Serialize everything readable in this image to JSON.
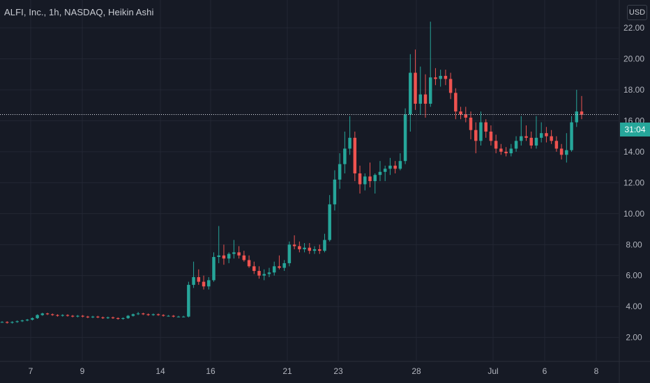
{
  "title": "ALFI, Inc., 1h, NASDAQ, Heikin Ashi",
  "currency": "USD",
  "countdown": "31:04",
  "colors": {
    "background": "#161a25",
    "grid": "#232734",
    "up": "#26a69a",
    "down": "#ef5350",
    "text": "#b2b5be",
    "crosshair": "#e0e3eb"
  },
  "chart_data": {
    "type": "candlestick",
    "title": "ALFI, Inc., 1h, NASDAQ, Heikin Ashi",
    "ylim": [
      0.5,
      23.8
    ],
    "y_ticks": [
      "2.00",
      "4.00",
      "6.00",
      "8.00",
      "10.00",
      "12.00",
      "14.00",
      "16.00",
      "18.00",
      "20.00",
      "22.00"
    ],
    "x_ticks": [
      "7",
      "9",
      "14",
      "16",
      "21",
      "23",
      "28",
      "Jul",
      "6",
      "8"
    ],
    "current_price": 16.4,
    "grid": true,
    "candles": [
      [
        3.0,
        3.05,
        2.95,
        3.0
      ],
      [
        3.0,
        3.05,
        2.9,
        2.95
      ],
      [
        2.95,
        3.05,
        2.9,
        3.0
      ],
      [
        3.0,
        3.1,
        2.95,
        3.05
      ],
      [
        3.05,
        3.15,
        3.0,
        3.1
      ],
      [
        3.1,
        3.2,
        3.05,
        3.15
      ],
      [
        3.15,
        3.3,
        3.1,
        3.25
      ],
      [
        3.25,
        3.5,
        3.2,
        3.45
      ],
      [
        3.45,
        3.6,
        3.4,
        3.55
      ],
      [
        3.55,
        3.6,
        3.45,
        3.5
      ],
      [
        3.5,
        3.55,
        3.4,
        3.45
      ],
      [
        3.45,
        3.5,
        3.35,
        3.4
      ],
      [
        3.4,
        3.5,
        3.35,
        3.45
      ],
      [
        3.45,
        3.5,
        3.35,
        3.4
      ],
      [
        3.4,
        3.45,
        3.3,
        3.35
      ],
      [
        3.35,
        3.45,
        3.3,
        3.4
      ],
      [
        3.4,
        3.45,
        3.3,
        3.35
      ],
      [
        3.35,
        3.4,
        3.25,
        3.3
      ],
      [
        3.3,
        3.4,
        3.25,
        3.35
      ],
      [
        3.35,
        3.4,
        3.25,
        3.3
      ],
      [
        3.3,
        3.35,
        3.2,
        3.25
      ],
      [
        3.25,
        3.35,
        3.2,
        3.3
      ],
      [
        3.3,
        3.35,
        3.2,
        3.25
      ],
      [
        3.25,
        3.3,
        3.15,
        3.2
      ],
      [
        3.2,
        3.3,
        3.15,
        3.25
      ],
      [
        3.25,
        3.45,
        3.2,
        3.4
      ],
      [
        3.4,
        3.55,
        3.35,
        3.5
      ],
      [
        3.5,
        3.65,
        3.45,
        3.55
      ],
      [
        3.55,
        3.6,
        3.45,
        3.5
      ],
      [
        3.5,
        3.55,
        3.4,
        3.45
      ],
      [
        3.45,
        3.55,
        3.4,
        3.5
      ],
      [
        3.5,
        3.55,
        3.4,
        3.45
      ],
      [
        3.45,
        3.5,
        3.35,
        3.4
      ],
      [
        3.4,
        3.45,
        3.35,
        3.4
      ],
      [
        3.4,
        3.45,
        3.3,
        3.35
      ],
      [
        3.35,
        3.4,
        3.3,
        3.35
      ],
      [
        3.35,
        3.4,
        3.3,
        3.35
      ],
      [
        3.35,
        5.6,
        3.3,
        5.4
      ],
      [
        5.4,
        6.9,
        5.2,
        5.9
      ],
      [
        5.9,
        6.4,
        5.4,
        5.6
      ],
      [
        5.6,
        6.0,
        5.1,
        5.3
      ],
      [
        5.3,
        5.9,
        5.1,
        5.7
      ],
      [
        5.7,
        7.5,
        5.6,
        7.2
      ],
      [
        7.2,
        9.2,
        6.8,
        7.3
      ],
      [
        7.3,
        8.0,
        6.7,
        7.1
      ],
      [
        7.1,
        7.5,
        6.8,
        7.4
      ],
      [
        7.4,
        8.3,
        7.1,
        7.5
      ],
      [
        7.5,
        7.9,
        7.1,
        7.3
      ],
      [
        7.3,
        7.6,
        6.9,
        7.0
      ],
      [
        7.0,
        7.3,
        6.5,
        6.6
      ],
      [
        6.6,
        6.9,
        6.1,
        6.3
      ],
      [
        6.3,
        6.6,
        5.8,
        6.0
      ],
      [
        6.0,
        6.4,
        5.7,
        6.1
      ],
      [
        6.1,
        6.5,
        5.9,
        6.2
      ],
      [
        6.2,
        6.9,
        6.0,
        6.6
      ],
      [
        6.6,
        7.3,
        6.4,
        6.5
      ],
      [
        6.5,
        7.0,
        6.3,
        6.8
      ],
      [
        6.8,
        8.2,
        6.6,
        8.0
      ],
      [
        8.0,
        8.6,
        7.7,
        7.9
      ],
      [
        7.9,
        8.2,
        7.5,
        7.7
      ],
      [
        7.7,
        8.1,
        7.5,
        7.8
      ],
      [
        7.8,
        8.1,
        7.4,
        7.6
      ],
      [
        7.6,
        7.9,
        7.4,
        7.7
      ],
      [
        7.7,
        8.0,
        7.4,
        7.6
      ],
      [
        7.6,
        8.7,
        7.5,
        8.3
      ],
      [
        8.3,
        11.2,
        8.2,
        10.6
      ],
      [
        10.6,
        12.8,
        10.2,
        12.2
      ],
      [
        12.2,
        13.9,
        11.6,
        13.2
      ],
      [
        13.2,
        15.3,
        12.6,
        14.2
      ],
      [
        14.2,
        16.3,
        13.8,
        14.9
      ],
      [
        14.9,
        15.3,
        12.1,
        12.6
      ],
      [
        12.6,
        13.1,
        11.3,
        11.9
      ],
      [
        11.9,
        12.6,
        11.5,
        12.4
      ],
      [
        12.4,
        13.3,
        11.7,
        12.1
      ],
      [
        12.1,
        12.6,
        11.3,
        12.5
      ],
      [
        12.5,
        13.4,
        12.1,
        12.7
      ],
      [
        12.7,
        13.1,
        12.1,
        12.9
      ],
      [
        12.9,
        13.6,
        12.5,
        13.1
      ],
      [
        13.1,
        13.4,
        12.6,
        12.9
      ],
      [
        12.9,
        13.9,
        12.8,
        13.4
      ],
      [
        13.4,
        16.8,
        13.2,
        16.4
      ],
      [
        16.4,
        20.3,
        15.3,
        19.1
      ],
      [
        19.1,
        20.6,
        16.7,
        17.1
      ],
      [
        17.1,
        19.5,
        16.4,
        17.7
      ],
      [
        17.7,
        19.0,
        16.2,
        17.1
      ],
      [
        17.1,
        22.4,
        16.9,
        18.8
      ],
      [
        18.8,
        19.4,
        18.3,
        18.7
      ],
      [
        18.7,
        19.3,
        18.2,
        18.9
      ],
      [
        18.9,
        19.3,
        18.3,
        18.7
      ],
      [
        18.7,
        19.1,
        17.4,
        17.8
      ],
      [
        17.8,
        18.1,
        16.1,
        16.6
      ],
      [
        16.6,
        16.9,
        16.1,
        16.4
      ],
      [
        16.4,
        16.9,
        15.9,
        16.2
      ],
      [
        16.2,
        16.6,
        14.8,
        15.4
      ],
      [
        15.4,
        15.9,
        13.9,
        14.7
      ],
      [
        14.7,
        16.6,
        14.4,
        15.9
      ],
      [
        15.9,
        16.1,
        14.9,
        15.3
      ],
      [
        15.3,
        15.7,
        14.4,
        14.7
      ],
      [
        14.7,
        15.1,
        13.9,
        14.2
      ],
      [
        14.2,
        14.5,
        13.8,
        14.0
      ],
      [
        14.0,
        14.3,
        13.7,
        13.9
      ],
      [
        13.9,
        14.5,
        13.7,
        14.2
      ],
      [
        14.2,
        15.0,
        14.0,
        14.7
      ],
      [
        14.7,
        16.3,
        14.4,
        15.0
      ],
      [
        15.0,
        15.7,
        14.7,
        14.9
      ],
      [
        14.9,
        15.3,
        14.2,
        14.4
      ],
      [
        14.4,
        16.3,
        14.2,
        14.9
      ],
      [
        14.9,
        15.9,
        14.6,
        15.2
      ],
      [
        15.2,
        15.6,
        14.6,
        15.0
      ],
      [
        15.0,
        15.4,
        14.5,
        14.7
      ],
      [
        14.7,
        15.0,
        14.0,
        14.2
      ],
      [
        14.2,
        14.5,
        13.5,
        13.8
      ],
      [
        13.8,
        15.2,
        13.3,
        14.1
      ],
      [
        14.1,
        16.3,
        14.0,
        15.9
      ],
      [
        15.9,
        18.0,
        15.6,
        16.6
      ],
      [
        16.6,
        17.6,
        16.1,
        16.4
      ]
    ]
  }
}
